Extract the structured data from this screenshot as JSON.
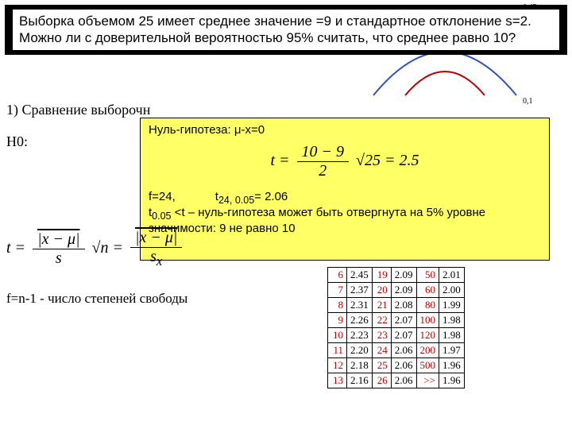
{
  "problem": "Выборка объемом 25 имеет среднее значение =9 и стандартное отклонение s=2. Можно ли с доверительной вероятностью 95% считать, что среднее равно 10?",
  "item1": "1)  Сравнение выборочн",
  "nullhyp": "Нуль-гипотеза: μ-x=0",
  "h0": "H0:",
  "yellow": {
    "eq_lhs": "t =",
    "eq_num": "10 − 9",
    "eq_den": "2",
    "eq_rhs": "√25 = 2.5",
    "line_f": "f=24,",
    "line_tval": "t",
    "line_tval_sub": "24, 0.05",
    "line_tval_eq": "= 2.06",
    "line2a": "t",
    "line2a_sub": "0.05",
    "line2b": " <t – нуль-гипотеза может быть отвергнута на 5% уровне значимости: 9 не равно 10"
  },
  "big_formula": {
    "t": "t =",
    "num1": "|x − μ|",
    "den1": "s",
    "sqrt": "√n",
    "eq": "=",
    "num2": "|x − μ|",
    "den2": "s",
    "den2_sub": "x"
  },
  "dof": "f=n-1 - число степеней свободы",
  "ttable": {
    "rows": [
      [
        "6",
        "2.45",
        "19",
        "2.09",
        "50",
        "2.01"
      ],
      [
        "7",
        "2.37",
        "20",
        "2.09",
        "60",
        "2.00"
      ],
      [
        "8",
        "2.31",
        "21",
        "2.08",
        "80",
        "1.99"
      ],
      [
        "9",
        "2.26",
        "22",
        "2.07",
        "100",
        "1.98"
      ],
      [
        "10",
        "2.23",
        "23",
        "2.07",
        "120",
        "1.98"
      ],
      [
        "11",
        "2.20",
        "24",
        "2.06",
        "200",
        "1.97"
      ],
      [
        "12",
        "2.18",
        "25",
        "2.06",
        "500",
        "1.96"
      ],
      [
        "13",
        "2.16",
        "26",
        "2.06",
        ">>",
        "1.96"
      ]
    ],
    "col_class": [
      "f",
      "v",
      "f",
      "v",
      "f",
      "v"
    ]
  },
  "colors": {
    "yellow": "#ffff66",
    "red": "#c00000",
    "black": "#000000",
    "white": "#ffffff"
  }
}
